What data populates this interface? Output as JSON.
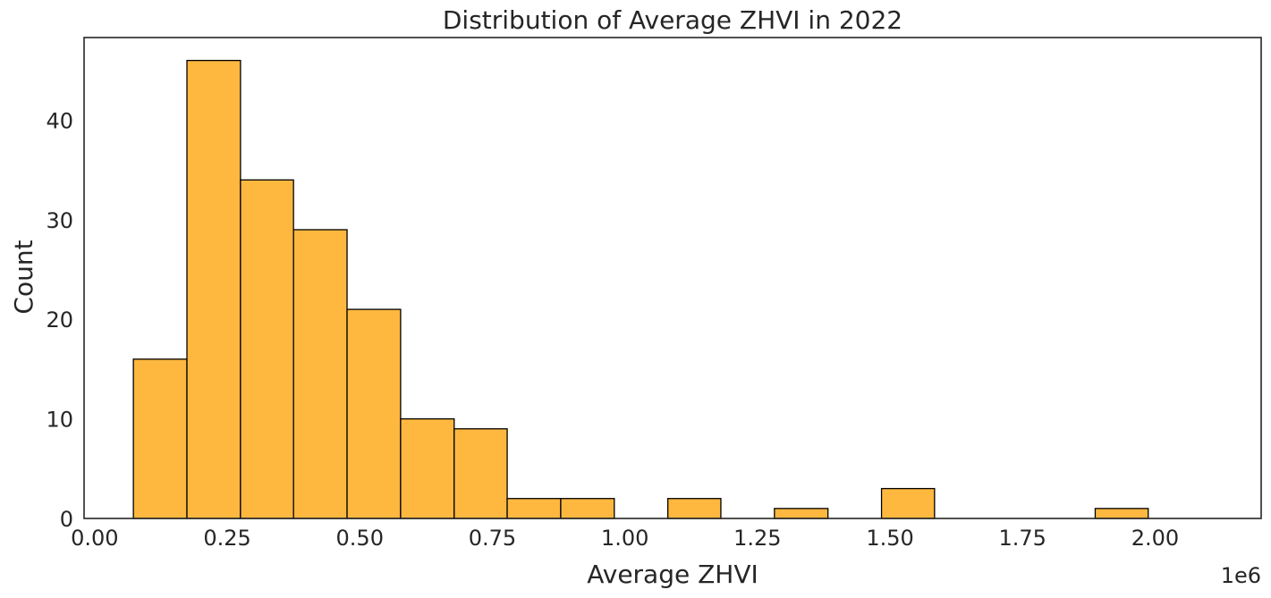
{
  "chart_data": {
    "type": "bar",
    "title": "Distribution of Average ZHVI in 2022",
    "xlabel": "Average ZHVI",
    "ylabel": "Count",
    "x_offset_label": "1e6",
    "bar_color": "#ffb83f",
    "edge_color": "#000000",
    "xlim": [
      -0.02,
      2.2
    ],
    "ylim": [
      0,
      48.3
    ],
    "x_ticks": [
      0.0,
      0.25,
      0.5,
      0.75,
      1.0,
      1.25,
      1.5,
      1.75,
      2.0
    ],
    "x_tick_labels": [
      "0.00",
      "0.25",
      "0.50",
      "0.75",
      "1.00",
      "1.25",
      "1.50",
      "1.75",
      "2.00"
    ],
    "y_ticks": [
      0,
      10,
      20,
      30,
      40
    ],
    "y_tick_labels": [
      "0",
      "10",
      "20",
      "30",
      "40"
    ],
    "grid": false,
    "bins": [
      {
        "start": 0.073,
        "end": 0.174,
        "count": 16
      },
      {
        "start": 0.174,
        "end": 0.275,
        "count": 46
      },
      {
        "start": 0.275,
        "end": 0.375,
        "count": 34
      },
      {
        "start": 0.375,
        "end": 0.476,
        "count": 29
      },
      {
        "start": 0.476,
        "end": 0.577,
        "count": 21
      },
      {
        "start": 0.577,
        "end": 0.678,
        "count": 10
      },
      {
        "start": 0.678,
        "end": 0.778,
        "count": 9
      },
      {
        "start": 0.778,
        "end": 0.879,
        "count": 2
      },
      {
        "start": 0.879,
        "end": 0.98,
        "count": 2
      },
      {
        "start": 0.98,
        "end": 1.081,
        "count": 0
      },
      {
        "start": 1.081,
        "end": 1.181,
        "count": 2
      },
      {
        "start": 1.181,
        "end": 1.282,
        "count": 0
      },
      {
        "start": 1.282,
        "end": 1.383,
        "count": 1
      },
      {
        "start": 1.383,
        "end": 1.484,
        "count": 0
      },
      {
        "start": 1.484,
        "end": 1.584,
        "count": 3
      },
      {
        "start": 1.584,
        "end": 1.685,
        "count": 0
      },
      {
        "start": 1.685,
        "end": 1.786,
        "count": 0
      },
      {
        "start": 1.786,
        "end": 1.887,
        "count": 0
      },
      {
        "start": 1.887,
        "end": 1.987,
        "count": 1
      }
    ]
  }
}
